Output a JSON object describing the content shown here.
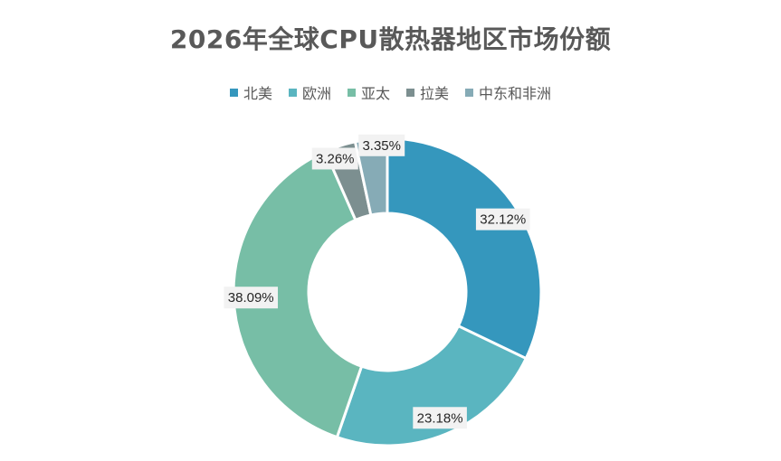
{
  "chart_data": {
    "type": "pie",
    "title": "2026年全球CPU散热器地区市场份额",
    "categories": [
      "北美",
      "欧洲",
      "亚太",
      "拉美",
      "中东和非洲"
    ],
    "values": [
      32.12,
      23.18,
      38.09,
      3.26,
      3.35
    ],
    "value_labels": [
      "32.12%",
      "23.18%",
      "38.09%",
      "3.26%",
      "3.35%"
    ],
    "colors": [
      "#3597bd",
      "#5ab5c0",
      "#77bea6",
      "#7c8f90",
      "#86abb6"
    ],
    "legend_position": "top",
    "donut": true
  }
}
